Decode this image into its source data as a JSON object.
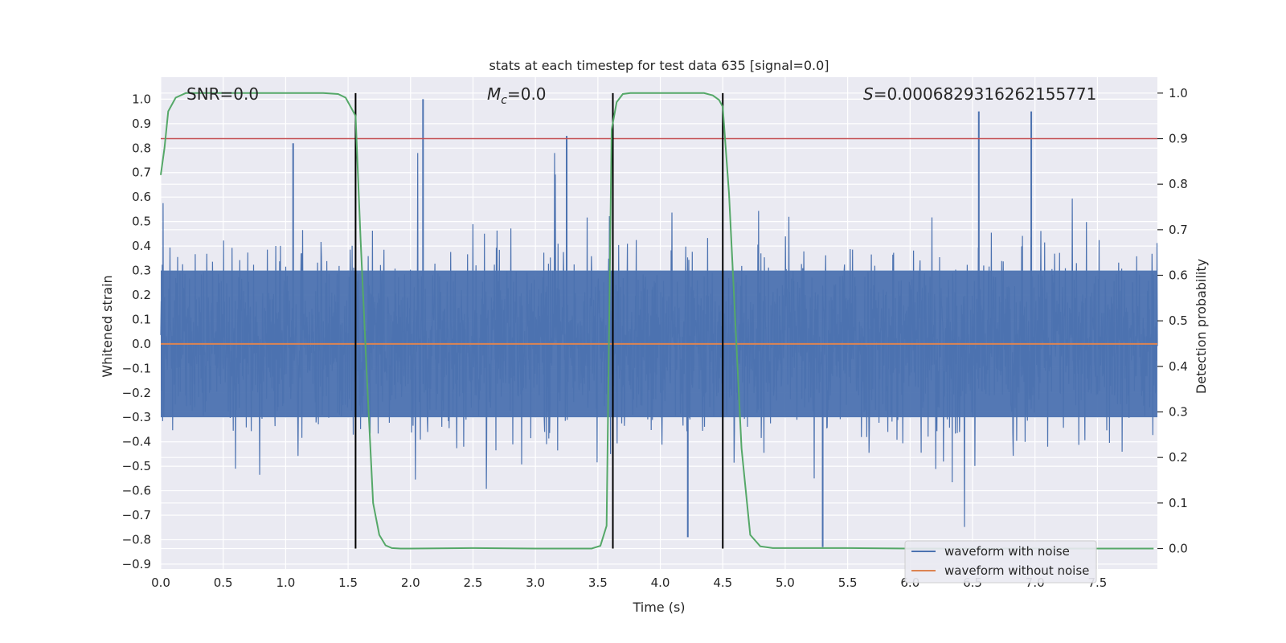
{
  "chart_data": {
    "type": "line",
    "title": "stats at each timestep for test data 635 [signal=0.0]",
    "xlabel": "Time (s)",
    "ylabel": "Whitened strain",
    "ylabel_right": "Detection probability",
    "xlim": [
      0.0,
      7.98
    ],
    "ylim": [
      -0.92,
      1.09
    ],
    "ylim_right": [
      -0.045,
      1.035
    ],
    "x_ticks": [
      0.0,
      0.5,
      1.0,
      1.5,
      2.0,
      2.5,
      3.0,
      3.5,
      4.0,
      4.5,
      5.0,
      5.5,
      6.0,
      6.5,
      7.0,
      7.5
    ],
    "x_tick_labels": [
      "0.0",
      "0.5",
      "1.0",
      "1.5",
      "2.0",
      "2.5",
      "3.0",
      "3.5",
      "4.0",
      "4.5",
      "5.0",
      "5.5",
      "6.0",
      "6.5",
      "7.0",
      "7.5"
    ],
    "y_ticks": [
      1.0,
      0.9,
      0.8,
      0.7,
      0.6,
      0.5,
      0.4,
      0.3,
      0.2,
      0.1,
      0.0,
      -0.1,
      -0.2,
      -0.3,
      -0.4,
      -0.5,
      -0.6,
      -0.7,
      -0.8,
      -0.9
    ],
    "y_tick_labels": [
      "1.0",
      "0.9",
      "0.8",
      "0.7",
      "0.6",
      "0.5",
      "0.4",
      "0.3",
      "0.2",
      "0.1",
      "0.0",
      "−0.1",
      "−0.2",
      "−0.3",
      "−0.4",
      "−0.5",
      "−0.6",
      "−0.7",
      "−0.8",
      "−0.9"
    ],
    "y_right_ticks": [
      1.0,
      0.9,
      0.8,
      0.7,
      0.6,
      0.5,
      0.4,
      0.3,
      0.2,
      0.1,
      0.0
    ],
    "y_right_tick_labels": [
      "1.0",
      "0.9",
      "0.8",
      "0.7",
      "0.6",
      "0.5",
      "0.4",
      "0.3",
      "0.2",
      "0.1",
      "0.0"
    ],
    "grid": true,
    "legend_position": "bottom-right",
    "annotations": {
      "snr": "SNR=0.0",
      "mc_symbol": "M",
      "mc_sub": "c",
      "mc_value": "=0.0",
      "s_symbol": "S",
      "s_value": "=0.0006829316262155771"
    },
    "series": [
      {
        "name": "waveform with noise",
        "color": "#4c72b0",
        "envelope": "noise",
        "amplitude_typical": 0.4,
        "peaks": [
          [
            1.06,
            0.82
          ],
          [
            2.1,
            1.0
          ],
          [
            3.25,
            0.85
          ],
          [
            6.55,
            0.95
          ],
          [
            6.97,
            0.95
          ],
          [
            5.3,
            -0.83
          ],
          [
            4.22,
            -0.79
          ]
        ]
      },
      {
        "name": "waveform without noise",
        "color": "#dd8452",
        "values_constant": 0.0
      }
    ],
    "detection_probability": {
      "color": "#55a868",
      "x": [
        0.0,
        0.03,
        0.06,
        0.12,
        0.2,
        0.5,
        1.0,
        1.3,
        1.42,
        1.48,
        1.52,
        1.56,
        1.6,
        1.65,
        1.7,
        1.75,
        1.8,
        1.85,
        1.92,
        2.0,
        2.5,
        3.0,
        3.3,
        3.45,
        3.52,
        3.57,
        3.61,
        3.65,
        3.7,
        3.76,
        4.0,
        4.35,
        4.42,
        4.47,
        4.5,
        4.55,
        4.6,
        4.65,
        4.72,
        4.8,
        4.9,
        5.5,
        6.0,
        6.5,
        7.0,
        7.5,
        7.95
      ],
      "y": [
        0.82,
        0.88,
        0.96,
        0.99,
        1.0,
        1.0,
        1.0,
        1.0,
        0.998,
        0.99,
        0.97,
        0.95,
        0.68,
        0.38,
        0.1,
        0.03,
        0.007,
        0.001,
        0.0,
        0.0,
        0.001,
        0.0,
        0.0,
        0.0,
        0.006,
        0.05,
        0.92,
        0.98,
        0.998,
        1.0,
        1.0,
        1.0,
        0.995,
        0.985,
        0.97,
        0.78,
        0.5,
        0.22,
        0.03,
        0.005,
        0.001,
        0.001,
        0.0,
        0.0,
        0.0,
        0.0,
        0.0
      ]
    },
    "threshold_right": 0.9,
    "threshold_color": "#c44e52",
    "vertical_lines_x": [
      1.56,
      3.62,
      4.5
    ]
  }
}
